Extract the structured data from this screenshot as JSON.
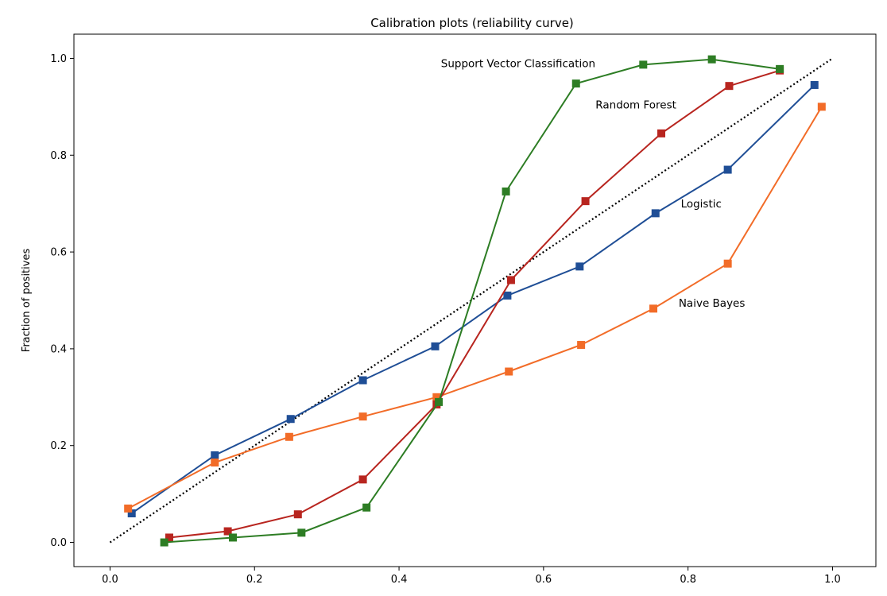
{
  "chart_data": {
    "type": "line",
    "title": "Calibration plots  (reliability curve)",
    "xlabel": "",
    "ylabel": "Fraction of positives",
    "xlim": [
      -0.05,
      1.06
    ],
    "ylim": [
      -0.05,
      1.05
    ],
    "xticks": [
      0.0,
      0.2,
      0.4,
      0.6,
      0.8,
      1.0
    ],
    "yticks": [
      0.0,
      0.2,
      0.4,
      0.6,
      0.8,
      1.0
    ],
    "tick_format": "1",
    "grid": false,
    "reference_line": {
      "x": [
        0,
        1
      ],
      "y": [
        0,
        1
      ],
      "style": "dotted",
      "color": "#000000"
    },
    "series": [
      {
        "name": "Logistic",
        "color": "#1f4e96",
        "x": [
          0.03,
          0.145,
          0.25,
          0.35,
          0.45,
          0.55,
          0.65,
          0.755,
          0.855,
          0.975
        ],
        "y": [
          0.06,
          0.18,
          0.255,
          0.335,
          0.405,
          0.51,
          0.57,
          0.68,
          0.77,
          0.945
        ]
      },
      {
        "name": "Naive Bayes",
        "color": "#f26c28",
        "x": [
          0.025,
          0.145,
          0.248,
          0.35,
          0.452,
          0.552,
          0.652,
          0.752,
          0.855,
          0.985
        ],
        "y": [
          0.07,
          0.165,
          0.218,
          0.26,
          0.3,
          0.353,
          0.408,
          0.483,
          0.576,
          0.9
        ]
      },
      {
        "name": "Random Forest",
        "color": "#b8251f",
        "x": [
          0.082,
          0.163,
          0.26,
          0.35,
          0.452,
          0.555,
          0.658,
          0.763,
          0.857,
          0.927
        ],
        "y": [
          0.01,
          0.023,
          0.058,
          0.13,
          0.285,
          0.542,
          0.705,
          0.845,
          0.943,
          0.975
        ]
      },
      {
        "name": "Support Vector Classification",
        "color": "#2d7d24",
        "x": [
          0.075,
          0.17,
          0.265,
          0.355,
          0.455,
          0.548,
          0.645,
          0.738,
          0.833,
          0.927
        ],
        "y": [
          0.0,
          0.01,
          0.02,
          0.072,
          0.29,
          0.725,
          0.948,
          0.987,
          0.998,
          0.978
        ]
      }
    ],
    "annotations": [
      {
        "text": "Support Vector Classification",
        "x": 0.458,
        "y": 0.99
      },
      {
        "text": "Random Forest",
        "x": 0.672,
        "y": 0.905
      },
      {
        "text": "Logistic",
        "x": 0.79,
        "y": 0.7
      },
      {
        "text": "Naive Bayes",
        "x": 0.787,
        "y": 0.495
      }
    ]
  }
}
